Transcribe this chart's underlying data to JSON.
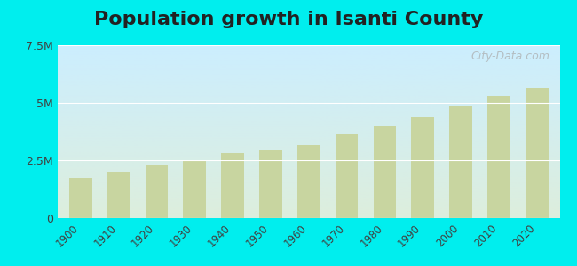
{
  "title": "Population growth in Isanti County",
  "title_fontsize": 16,
  "background_color": "#00EEEE",
  "years": [
    1900,
    1910,
    1920,
    1930,
    1940,
    1950,
    1960,
    1970,
    1980,
    1990,
    2000,
    2010,
    2020
  ],
  "minnesota_values": [
    1750000,
    2000000,
    2300000,
    2550000,
    2800000,
    2980000,
    3200000,
    3650000,
    4000000,
    4375000,
    4900000,
    5300000,
    5640000
  ],
  "bar_color": "#c8d5a0",
  "ylim": [
    0,
    7500000
  ],
  "yticks": [
    0,
    2500000,
    5000000,
    7500000
  ],
  "ytick_labels": [
    "0",
    "2.5M",
    "5M",
    "7.5M"
  ],
  "legend_isanti_color": "#cc99cc",
  "legend_mn_color": "#c8d5a0",
  "bar_width": 0.6,
  "watermark": "City-Data.com",
  "plot_top_color": "#cceeff",
  "plot_bottom_color": "#ddeedd"
}
